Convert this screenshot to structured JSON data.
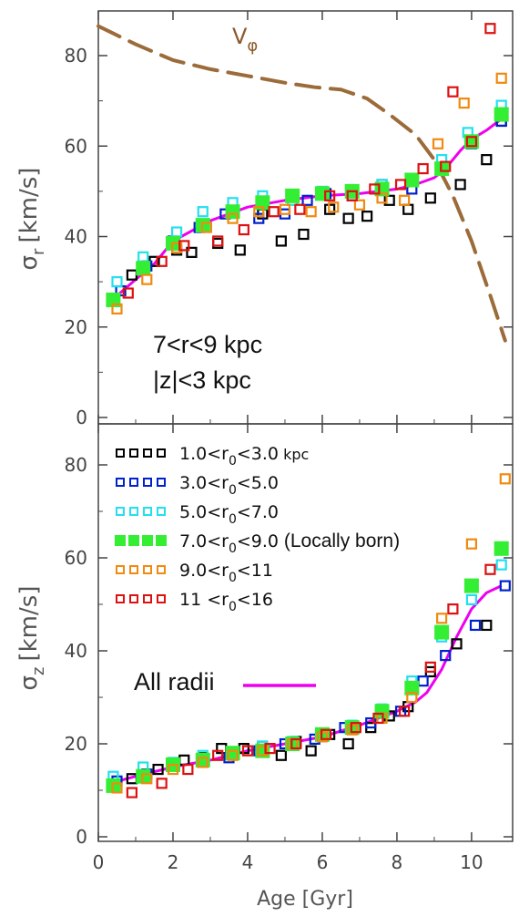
{
  "chart_data": [
    {
      "type": "scatter",
      "panel": "top",
      "ylabel_symbol": "σ",
      "ylabel_sub": "r",
      "ylabel_unit": "[km/s]",
      "xlabel": "Age [Gyr]",
      "xlim": [
        0,
        11.1
      ],
      "ylim": [
        0,
        88
      ],
      "yticks": [
        0,
        20,
        40,
        60,
        80
      ],
      "xticks": [
        0,
        2,
        4,
        6,
        8,
        10
      ],
      "annotations": [
        "7<r<9 kpc",
        "|z|<3 kpc"
      ],
      "vphi_label": "V",
      "vphi_sub": "φ",
      "series": [
        {
          "key": "s1",
          "color": "#000000",
          "x": [
            0.9,
            1.5,
            2.1,
            2.5,
            3.2,
            3.8,
            4.4,
            4.9,
            5.5,
            6.2,
            6.7,
            7.2,
            7.8,
            8.3,
            8.9,
            9.7,
            10.4,
            10.8
          ],
          "y": [
            31.5,
            34.5,
            37.0,
            36.5,
            38.5,
            37.0,
            45.0,
            39.0,
            40.5,
            46.0,
            44.0,
            44.5,
            48.0,
            46.0,
            48.5,
            51.5,
            57.0,
            65.5
          ]
        },
        {
          "key": "s2",
          "color": "#0022cc",
          "x": [
            0.6,
            1.3,
            2.0,
            2.7,
            3.4,
            4.3,
            5.0,
            5.6,
            6.1,
            6.8,
            7.6,
            8.4,
            9.2,
            10.0,
            10.8
          ],
          "y": [
            28.0,
            33.5,
            39.0,
            42.0,
            45.0,
            44.0,
            45.0,
            48.0,
            49.5,
            49.0,
            51.5,
            50.5,
            55.0,
            60.5,
            65.5
          ]
        },
        {
          "key": "s3",
          "color": "#22e0ee",
          "x": [
            0.5,
            1.2,
            2.1,
            2.8,
            3.6,
            4.4,
            5.2,
            6.0,
            6.8,
            7.6,
            8.4,
            9.2,
            9.9,
            10.8
          ],
          "y": [
            30.0,
            35.5,
            41.0,
            45.5,
            47.5,
            49.0,
            48.0,
            50.0,
            50.0,
            51.5,
            52.5,
            57.0,
            63.0,
            69.0
          ]
        },
        {
          "key": "s4",
          "color": "#33ee33",
          "filled": true,
          "x": [
            0.4,
            1.2,
            2.0,
            2.8,
            3.6,
            4.4,
            5.2,
            6.0,
            6.8,
            7.6,
            8.4,
            9.2,
            10.0,
            10.8
          ],
          "y": [
            26.0,
            33.0,
            38.5,
            42.5,
            45.5,
            47.5,
            49.0,
            49.5,
            50.0,
            50.5,
            52.5,
            55.0,
            61.0,
            67.0
          ]
        },
        {
          "key": "s5",
          "color": "#f08a10",
          "x": [
            0.5,
            1.3,
            2.1,
            2.9,
            3.6,
            4.3,
            5.0,
            5.7,
            6.3,
            7.0,
            7.6,
            8.2,
            9.1,
            9.8,
            10.8
          ],
          "y": [
            24.0,
            30.5,
            37.5,
            42.0,
            44.0,
            45.5,
            46.0,
            45.5,
            46.5,
            47.0,
            48.5,
            48.0,
            60.5,
            69.5,
            75.0
          ]
        },
        {
          "key": "s6",
          "color": "#dd1111",
          "x": [
            0.8,
            1.7,
            2.3,
            3.2,
            3.9,
            4.7,
            5.4,
            6.2,
            6.8,
            7.4,
            8.1,
            8.7,
            9.3,
            9.5,
            10.0,
            10.5
          ],
          "y": [
            27.5,
            34.5,
            38.0,
            39.0,
            41.5,
            45.5,
            46.0,
            49.0,
            49.0,
            50.5,
            51.5,
            55.0,
            55.5,
            72.0,
            61.0,
            86.0
          ]
        }
      ],
      "all_radii_line": {
        "color": "#ee00ee",
        "x": [
          0.3,
          1.0,
          1.5,
          2.0,
          3.0,
          4.0,
          5.0,
          6.0,
          7.0,
          7.5,
          8.0,
          8.5,
          9.0,
          9.3,
          9.7,
          10.0,
          10.4,
          10.8
        ],
        "y": [
          25.5,
          30.5,
          34.0,
          39.0,
          43.5,
          46.5,
          48.0,
          49.0,
          49.5,
          50.0,
          50.5,
          51.5,
          53.0,
          55.0,
          59.0,
          61.5,
          63.5,
          66.0
        ]
      },
      "vphi_line": {
        "color": "#9b6b3a",
        "x": [
          0.0,
          1.0,
          2.0,
          3.0,
          4.0,
          5.0,
          5.8,
          6.5,
          7.2,
          7.8,
          8.5,
          9.0,
          9.5,
          10.0,
          10.5,
          10.9
        ],
        "y": [
          86.5,
          82.5,
          79.0,
          77.0,
          75.5,
          74.0,
          73.0,
          72.5,
          70.5,
          67.0,
          62.5,
          57.0,
          49.0,
          39.0,
          27.0,
          17.0
        ]
      }
    },
    {
      "type": "scatter",
      "panel": "bottom",
      "ylabel_symbol": "σ",
      "ylabel_sub": "z",
      "ylabel_unit": "[km/s]",
      "xlabel": "Age [Gyr]",
      "xlim": [
        0,
        11.1
      ],
      "ylim": [
        0,
        88
      ],
      "yticks": [
        0,
        20,
        40,
        60,
        80
      ],
      "xticks": [
        0,
        2,
        4,
        6,
        8,
        10
      ],
      "xtick_labels": [
        "0",
        "2",
        "4",
        "6",
        "8",
        "10"
      ],
      "legend": [
        {
          "key": "s1",
          "pre": "1.0<r",
          "sub": "0",
          "post": "<3.0",
          "unit": " kpc"
        },
        {
          "key": "s2",
          "pre": "3.0<r",
          "sub": "0",
          "post": "<5.0"
        },
        {
          "key": "s3",
          "pre": "5.0<r",
          "sub": "0",
          "post": "<7.0"
        },
        {
          "key": "s4",
          "pre": "7.0<r",
          "sub": "0",
          "post": "<9.0",
          "note": " (Locally born)"
        },
        {
          "key": "s5",
          "pre": "9.0<r",
          "sub": "0",
          "post": "<11"
        },
        {
          "key": "s6",
          "pre": "11 <r",
          "sub": "0",
          "post": "<16"
        }
      ],
      "all_radii_label": "All radii",
      "series": [
        {
          "key": "s1",
          "color": "#000000",
          "x": [
            0.9,
            1.6,
            2.3,
            2.8,
            3.3,
            3.9,
            4.4,
            4.9,
            5.3,
            5.7,
            6.2,
            6.7,
            7.3,
            7.8,
            8.3,
            8.9,
            9.6,
            10.4
          ],
          "y": [
            12.5,
            14.5,
            16.5,
            17.0,
            19.0,
            19.0,
            19.5,
            17.5,
            20.5,
            18.5,
            22.0,
            20.0,
            23.5,
            26.0,
            28.0,
            35.5,
            41.5,
            45.5
          ]
        },
        {
          "key": "s2",
          "color": "#0022cc",
          "x": [
            0.5,
            1.3,
            2.0,
            2.8,
            3.5,
            4.3,
            5.0,
            5.8,
            6.6,
            7.3,
            8.1,
            8.7,
            9.3,
            10.1,
            10.9
          ],
          "y": [
            12.0,
            13.5,
            15.5,
            16.0,
            17.0,
            18.5,
            20.0,
            21.0,
            23.5,
            24.5,
            27.0,
            33.5,
            39.0,
            45.5,
            54.0
          ]
        },
        {
          "key": "s3",
          "color": "#22e0ee",
          "x": [
            0.4,
            1.2,
            2.0,
            2.8,
            3.6,
            4.4,
            5.2,
            6.0,
            6.8,
            7.6,
            8.4,
            9.2,
            10.0,
            10.8
          ],
          "y": [
            13.0,
            15.0,
            16.0,
            17.5,
            18.0,
            19.5,
            20.5,
            22.0,
            24.0,
            27.5,
            33.5,
            43.0,
            51.0,
            58.5
          ]
        },
        {
          "key": "s4",
          "color": "#33ee33",
          "filled": true,
          "x": [
            0.4,
            1.2,
            2.0,
            2.8,
            3.6,
            4.4,
            5.2,
            6.0,
            6.8,
            7.6,
            8.4,
            9.2,
            10.0,
            10.8
          ],
          "y": [
            11.0,
            13.0,
            15.5,
            16.5,
            18.0,
            18.5,
            20.0,
            22.0,
            23.5,
            27.0,
            32.0,
            44.0,
            54.0,
            62.0
          ]
        },
        {
          "key": "s5",
          "color": "#f08a10",
          "x": [
            0.5,
            1.3,
            2.0,
            2.8,
            3.6,
            4.4,
            5.2,
            6.0,
            6.8,
            7.6,
            8.4,
            9.2,
            10.0,
            10.9
          ],
          "y": [
            10.5,
            12.5,
            14.5,
            16.0,
            17.5,
            18.5,
            20.0,
            21.5,
            23.0,
            25.5,
            30.0,
            47.0,
            63.0,
            77.0
          ]
        },
        {
          "key": "s6",
          "color": "#dd1111",
          "x": [
            0.9,
            1.7,
            2.4,
            3.2,
            4.0,
            4.6,
            5.3,
            6.1,
            6.9,
            7.5,
            8.2,
            8.9,
            9.5,
            10.5
          ],
          "y": [
            9.5,
            11.5,
            14.5,
            17.5,
            18.5,
            19.0,
            20.0,
            22.0,
            23.5,
            25.5,
            27.0,
            36.5,
            49.0,
            57.5
          ]
        }
      ],
      "all_radii_line": {
        "color": "#ee00ee",
        "x": [
          0.3,
          1.0,
          2.0,
          3.0,
          4.0,
          5.0,
          6.0,
          7.0,
          7.5,
          8.0,
          8.5,
          8.8,
          9.2,
          9.6,
          10.0,
          10.4,
          10.8
        ],
        "y": [
          11.5,
          13.0,
          15.0,
          16.5,
          18.5,
          20.0,
          21.5,
          24.0,
          25.5,
          27.0,
          29.0,
          31.0,
          36.0,
          43.0,
          49.0,
          52.5,
          54.0
        ]
      }
    }
  ]
}
